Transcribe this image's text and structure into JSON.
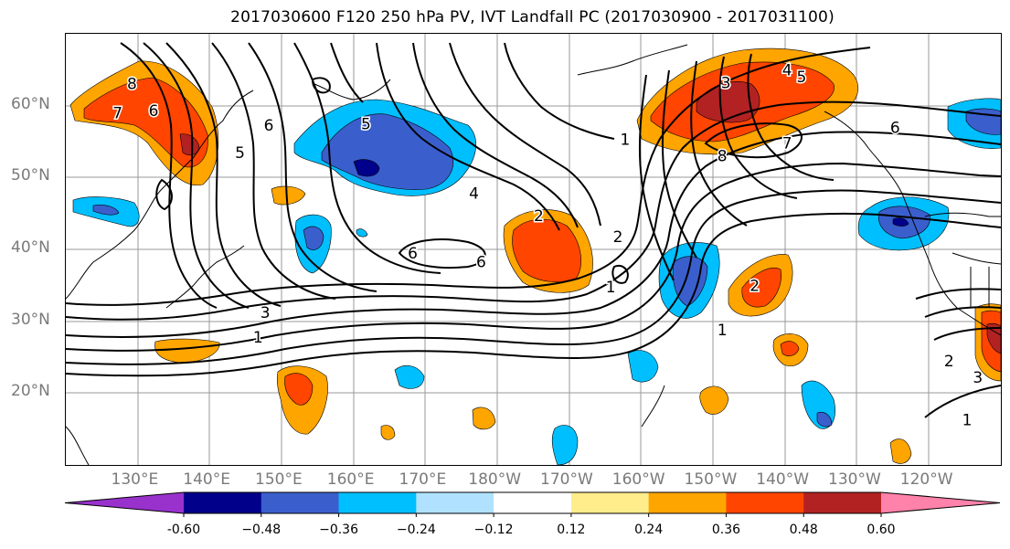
{
  "title": "2017030600 F120 250 hPa PV, IVT Landfall PC (2017030900 - 2017031100)",
  "map": {
    "lat_labels": [
      {
        "text": "60°N",
        "lat": 60
      },
      {
        "text": "50°N",
        "lat": 50
      },
      {
        "text": "40°N",
        "lat": 40
      },
      {
        "text": "30°N",
        "lat": 30
      },
      {
        "text": "20°N",
        "lat": 20
      }
    ],
    "lon_labels": [
      {
        "text": "130°E",
        "lon": 130
      },
      {
        "text": "140°E",
        "lon": 140
      },
      {
        "text": "150°E",
        "lon": 150
      },
      {
        "text": "160°E",
        "lon": 160
      },
      {
        "text": "170°E",
        "lon": 170
      },
      {
        "text": "180°W",
        "lon": 180
      },
      {
        "text": "170°W",
        "lon": 190
      },
      {
        "text": "160°W",
        "lon": 200
      },
      {
        "text": "150°W",
        "lon": 210
      },
      {
        "text": "140°W",
        "lon": 220
      },
      {
        "text": "130°W",
        "lon": 230
      },
      {
        "text": "120°W",
        "lon": 240
      }
    ],
    "extent": {
      "lon_min": 120.3,
      "lon_max": 250.2,
      "lat_min": 10,
      "lat_max": 70
    },
    "grid": true,
    "contour_labels": [
      {
        "text": "8",
        "lon": 129.5,
        "lat": 63.1
      },
      {
        "text": "7",
        "lon": 127.5,
        "lat": 59.0
      },
      {
        "text": "6",
        "lon": 132.5,
        "lat": 59.3
      },
      {
        "text": "5",
        "lon": 144.5,
        "lat": 53.5
      },
      {
        "text": "6",
        "lon": 148.5,
        "lat": 57.3
      },
      {
        "text": "5",
        "lon": 162.0,
        "lat": 57.5
      },
      {
        "text": "4",
        "lon": 177.0,
        "lat": 47.8
      },
      {
        "text": "6",
        "lon": 168.5,
        "lat": 39.5
      },
      {
        "text": "6",
        "lon": 178.0,
        "lat": 38.3
      },
      {
        "text": "2",
        "lon": 186.0,
        "lat": 44.7
      },
      {
        "text": "1",
        "lon": 198.0,
        "lat": 55.3
      },
      {
        "text": "2",
        "lon": 197.0,
        "lat": 41.8
      },
      {
        "text": "1",
        "lon": 196.0,
        "lat": 34.8
      },
      {
        "text": "3",
        "lon": 212.0,
        "lat": 63.2
      },
      {
        "text": "4",
        "lon": 220.5,
        "lat": 65.0
      },
      {
        "text": "5",
        "lon": 222.5,
        "lat": 64.0
      },
      {
        "text": "8",
        "lon": 211.5,
        "lat": 53.0
      },
      {
        "text": "7",
        "lon": 220.5,
        "lat": 54.8
      },
      {
        "text": "6",
        "lon": 235.5,
        "lat": 57.0
      },
      {
        "text": "3",
        "lon": 148.0,
        "lat": 31.2
      },
      {
        "text": "1",
        "lon": 147.0,
        "lat": 27.8
      },
      {
        "text": "2",
        "lon": 216.0,
        "lat": 35.0
      },
      {
        "text": "1",
        "lon": 211.5,
        "lat": 28.8
      },
      {
        "text": "2",
        "lon": 243.0,
        "lat": 24.5
      },
      {
        "text": "3",
        "lon": 247.0,
        "lat": 22.2
      },
      {
        "text": "1",
        "lon": 245.5,
        "lat": 16.3
      }
    ]
  },
  "colorbar": {
    "colors": [
      "#9932cc",
      "#00008b",
      "#3a5fcd",
      "#00bfff",
      "#b0e2ff",
      "#ffffff",
      "#ffec8b",
      "#ffa500",
      "#ff4500",
      "#b22222",
      "#ff82ab"
    ],
    "tick_labels": [
      "-0.60",
      "−0.48",
      "−0.36",
      "−0.24",
      "−0.12",
      "0.12",
      "0.24",
      "0.36",
      "0.48",
      "0.60"
    ]
  }
}
